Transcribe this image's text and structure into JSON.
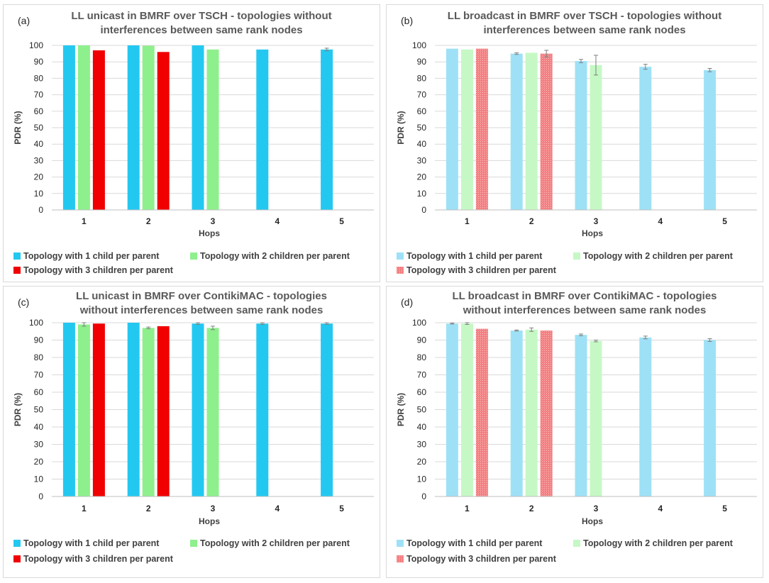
{
  "chart_data": [
    {
      "type": "bar",
      "panel_label": "(a)",
      "title_lines": [
        "LL unicast in BMRF over TSCH - topologies without",
        "interferences between same rank nodes"
      ],
      "xlabel": "Hops",
      "ylabel": "PDR (%)",
      "ylim": [
        0,
        100
      ],
      "yticks": [
        "0",
        "10",
        "20",
        "30",
        "40",
        "50",
        "60",
        "70",
        "80",
        "90",
        "100"
      ],
      "categories": [
        "1",
        "2",
        "3",
        "4",
        "5"
      ],
      "grid": true,
      "legend_position": "bottom",
      "series": [
        {
          "name": "Topology with 1 child per parent",
          "color": "#23c8f1",
          "values": [
            100,
            100,
            100,
            97.5,
            97.5
          ],
          "errors": [
            0,
            0,
            0,
            0,
            0.8
          ]
        },
        {
          "name": "Topology with 2 children per parent",
          "color": "#8ef08c",
          "values": [
            100,
            99.8,
            97.5,
            null,
            null
          ],
          "errors": [
            0,
            0,
            0,
            null,
            null
          ]
        },
        {
          "name": "Topology with 3 children per parent",
          "color": "#f00000",
          "values": [
            97,
            96,
            null,
            null,
            null
          ],
          "errors": [
            0,
            0,
            null,
            null,
            null
          ]
        }
      ]
    },
    {
      "type": "bar",
      "panel_label": "(b)",
      "title_lines": [
        "LL broadcast in BMRF over TSCH - topologies without",
        "interferences between same rank nodes"
      ],
      "xlabel": "Hops",
      "ylabel": "PDR (%)",
      "ylim": [
        0,
        100
      ],
      "yticks": [
        "0",
        "10",
        "20",
        "30",
        "40",
        "50",
        "60",
        "70",
        "80",
        "90",
        "100"
      ],
      "categories": [
        "1",
        "2",
        "3",
        "4",
        "5"
      ],
      "grid": true,
      "legend_position": "bottom",
      "series": [
        {
          "name": "Topology with 1 child per parent",
          "color": "#9ee1f6",
          "values": [
            98,
            95,
            90.5,
            87,
            85
          ],
          "errors": [
            0,
            0.5,
            1,
            1.5,
            1
          ]
        },
        {
          "name": "Topology with 2 children per parent",
          "color": "#c5f8c5",
          "values": [
            97.5,
            95.5,
            88,
            null,
            null
          ],
          "errors": [
            0,
            0,
            6,
            null,
            null
          ]
        },
        {
          "name": "Topology with 3 children per parent",
          "color": "#f37a7c",
          "pattern": true,
          "values": [
            98,
            95,
            null,
            null,
            null
          ],
          "errors": [
            0,
            2,
            null,
            null,
            null
          ]
        }
      ]
    },
    {
      "type": "bar",
      "panel_label": "(c)",
      "title_lines": [
        "LL unicast in BMRF over ContikiMAC - topologies",
        "without interferences between same rank nodes"
      ],
      "xlabel": "Hops",
      "ylabel": "PDR (%)",
      "ylim": [
        0,
        100
      ],
      "yticks": [
        "0",
        "10",
        "20",
        "30",
        "40",
        "50",
        "60",
        "70",
        "80",
        "90",
        "100"
      ],
      "categories": [
        "1",
        "2",
        "3",
        "4",
        "5"
      ],
      "grid": true,
      "legend_position": "bottom",
      "series": [
        {
          "name": "Topology with 1 child per parent",
          "color": "#23c8f1",
          "values": [
            100,
            100,
            99.5,
            99.5,
            99.5
          ],
          "errors": [
            0,
            0,
            0.5,
            0.5,
            0.5
          ]
        },
        {
          "name": "Topology with 2 children per parent",
          "color": "#8ef08c",
          "values": [
            99,
            97,
            97,
            null,
            null
          ],
          "errors": [
            1,
            0.5,
            1,
            null,
            null
          ]
        },
        {
          "name": "Topology with 3 children per parent",
          "color": "#f00000",
          "values": [
            99.5,
            98,
            null,
            null,
            null
          ],
          "errors": [
            0,
            0,
            null,
            null,
            null
          ]
        }
      ]
    },
    {
      "type": "bar",
      "panel_label": "(d)",
      "title_lines": [
        "LL broadcast in BMRF over ContikiMAC - topologies",
        "without interferences between same rank nodes"
      ],
      "xlabel": "Hops",
      "ylabel": "PDR (%)",
      "ylim": [
        0,
        100
      ],
      "yticks": [
        "0",
        "10",
        "20",
        "30",
        "40",
        "50",
        "60",
        "70",
        "80",
        "90",
        "100"
      ],
      "categories": [
        "1",
        "2",
        "3",
        "4",
        "5"
      ],
      "grid": true,
      "legend_position": "bottom",
      "series": [
        {
          "name": "Topology with 1 child per parent",
          "color": "#9ee1f6",
          "values": [
            99.5,
            95.5,
            93,
            91.5,
            90
          ],
          "errors": [
            0.3,
            0.3,
            0.5,
            0.8,
            0.8
          ]
        },
        {
          "name": "Topology with 2 children per parent",
          "color": "#c5f8c5",
          "values": [
            99.5,
            96,
            89.5,
            null,
            null
          ],
          "errors": [
            0.5,
            1,
            0.5,
            null,
            null
          ]
        },
        {
          "name": "Topology with 3 children per parent",
          "color": "#f37a7c",
          "pattern": true,
          "values": [
            96.5,
            95.5,
            null,
            null,
            null
          ],
          "errors": [
            0,
            0,
            null,
            null,
            null
          ]
        }
      ]
    }
  ]
}
